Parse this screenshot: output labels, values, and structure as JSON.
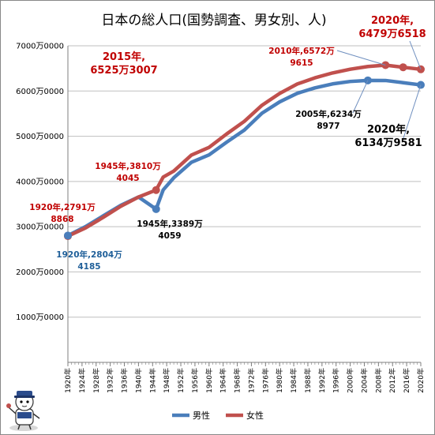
{
  "chart_data": {
    "type": "line",
    "title": "日本の総人口(国勢調査、男女別、人)",
    "xlabel": "",
    "ylabel": "",
    "ylim": [
      0,
      70000000
    ],
    "yticks": [
      {
        "value": 10000000,
        "label": "1000万0000"
      },
      {
        "value": 20000000,
        "label": "2000万0000"
      },
      {
        "value": 30000000,
        "label": "3000万0000"
      },
      {
        "value": 40000000,
        "label": "4000万0000"
      },
      {
        "value": 50000000,
        "label": "5000万0000"
      },
      {
        "value": 60000000,
        "label": "6000万0000"
      },
      {
        "value": 70000000,
        "label": "7000万0000"
      }
    ],
    "xlim": [
      1920,
      2020
    ],
    "xticks": [
      "1920年",
      "1924年",
      "1928年",
      "1932年",
      "1936年",
      "1940年",
      "1944年",
      "1948年",
      "1952年",
      "1956年",
      "1960年",
      "1964年",
      "1968年",
      "1972年",
      "1976年",
      "1980年",
      "1984年",
      "1988年",
      "1992年",
      "1996年",
      "2000年",
      "2004年",
      "2008年",
      "2012年",
      "2016年",
      "2020年"
    ],
    "grid": true,
    "legend_position": "bottom",
    "series": [
      {
        "name": "男性",
        "color": "#4a7ebb",
        "points": [
          [
            1920,
            28044185
          ],
          [
            1925,
            30013109
          ],
          [
            1930,
            32390155
          ],
          [
            1935,
            34734133
          ],
          [
            1940,
            36566010
          ],
          [
            1945,
            33894059
          ],
          [
            1947,
            38129399
          ],
          [
            1950,
            40811760
          ],
          [
            1955,
            44242657
          ],
          [
            1960,
            45877602
          ],
          [
            1965,
            48692138
          ],
          [
            1970,
            51369177
          ],
          [
            1975,
            55090673
          ],
          [
            1980,
            57593769
          ],
          [
            1985,
            59497316
          ],
          [
            1990,
            60696724
          ],
          [
            1995,
            61574398
          ],
          [
            2000,
            62110764
          ],
          [
            2005,
            62348977
          ],
          [
            2010,
            62327737
          ],
          [
            2015,
            61841738
          ],
          [
            2020,
            61349581
          ]
        ]
      },
      {
        "name": "女性",
        "color": "#c0504d",
        "points": [
          [
            1920,
            27918868
          ],
          [
            1925,
            29723595
          ],
          [
            1930,
            32059873
          ],
          [
            1935,
            34519900
          ],
          [
            1940,
            36548670
          ],
          [
            1945,
            38104045
          ],
          [
            1947,
            40971917
          ],
          [
            1950,
            42303742
          ],
          [
            1955,
            45833384
          ],
          [
            1960,
            47540678
          ],
          [
            1965,
            50517133
          ],
          [
            1970,
            53295517
          ],
          [
            1975,
            56849278
          ],
          [
            1980,
            59466893
          ],
          [
            1985,
            61551601
          ],
          [
            1990,
            62914938
          ],
          [
            1995,
            63996223
          ],
          [
            2000,
            64815169
          ],
          [
            2005,
            65419017
          ],
          [
            2010,
            65729615
          ],
          [
            2015,
            65253007
          ],
          [
            2020,
            64796518
          ]
        ]
      }
    ],
    "annotations": [
      {
        "id": "f2015",
        "color": "#c00000",
        "size": "big",
        "lines": [
          "2015年,",
          "6525万3007"
        ],
        "x": 2015,
        "y": 65253007,
        "leader": false
      },
      {
        "id": "f2020",
        "color": "#c00000",
        "size": "big",
        "lines": [
          "2020年,",
          "6479万6518"
        ],
        "x": 2020,
        "y": 64796518,
        "leader": true
      },
      {
        "id": "f2010",
        "color": "#c00000",
        "size": "small",
        "lines": [
          "2010年,6572万",
          "9615"
        ],
        "x": 2010,
        "y": 65729615,
        "leader": true
      },
      {
        "id": "m2005",
        "color": "#000000",
        "size": "small",
        "lines": [
          "2005年,6234万",
          "8977"
        ],
        "x": 2005,
        "y": 62348977,
        "leader": true
      },
      {
        "id": "m2020",
        "color": "#000000",
        "size": "big",
        "lines": [
          "2020年,",
          "6134万9581"
        ],
        "x": 2020,
        "y": 61349581,
        "leader": true
      },
      {
        "id": "f1945",
        "color": "#c00000",
        "size": "small",
        "lines": [
          "1945年,3810万",
          "4045"
        ],
        "x": 1945,
        "y": 38104045,
        "leader": false
      },
      {
        "id": "f1920",
        "color": "#c00000",
        "size": "small",
        "lines": [
          "1920年,2791万",
          "8868"
        ],
        "x": 1920,
        "y": 27918868,
        "leader": false
      },
      {
        "id": "m1945",
        "color": "#000000",
        "size": "small",
        "lines": [
          "1945年,3389万",
          "4059"
        ],
        "x": 1945,
        "y": 33894059,
        "leader": false
      },
      {
        "id": "m1920",
        "color": "#1f5f99",
        "size": "small",
        "lines": [
          "1920年,2804万",
          "4185"
        ],
        "x": 1920,
        "y": 28044185,
        "leader": false
      }
    ]
  }
}
